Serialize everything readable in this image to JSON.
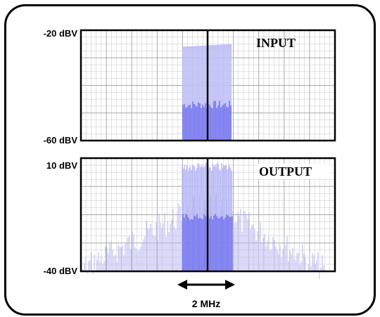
{
  "chart_data": [
    {
      "type": "bar",
      "title": "INPUT",
      "xlabel": "",
      "ylabel": "",
      "ylim": [
        -60,
        -20
      ],
      "ymax_label": "-20 dBV",
      "ymin_label": "-60 dBV",
      "grid": true,
      "series": [
        {
          "role": "envelope",
          "x_range_mhz": [
            -1.0,
            0.95
          ],
          "start_dbv": -26,
          "end_dbv": -25
        },
        {
          "role": "signal",
          "x_range_mhz": [
            -1.0,
            0.95
          ],
          "level_dbv": -47,
          "floor_dbv": -60
        }
      ]
    },
    {
      "type": "bar",
      "title": "OUTPUT",
      "xlabel": "",
      "ylabel": "",
      "ylim": [
        -40,
        10
      ],
      "ymax_label": "10 dBV",
      "ymin_label": "-40 dBV",
      "grid": true,
      "series": [
        {
          "role": "envelope",
          "x_range_mhz": [
            -1.0,
            1.0
          ],
          "level_dbv": 8
        },
        {
          "role": "signal",
          "x_range_mhz": [
            -1.0,
            1.0
          ],
          "level_dbv": -16
        },
        {
          "role": "spectral-regrowth",
          "x_range_mhz": [
            -5.0,
            4.6
          ],
          "peak_dbv": -6,
          "edge_dbv": -36
        }
      ]
    }
  ],
  "bandwidth_label": "2 MHz",
  "bandwidth_mhz": 2,
  "colors": {
    "envelope": "#b9b9f5",
    "signal": "#6a6aee",
    "regrowth": "#b4b4f2",
    "grid": "#c4c4c4",
    "center_line": "#000000"
  }
}
